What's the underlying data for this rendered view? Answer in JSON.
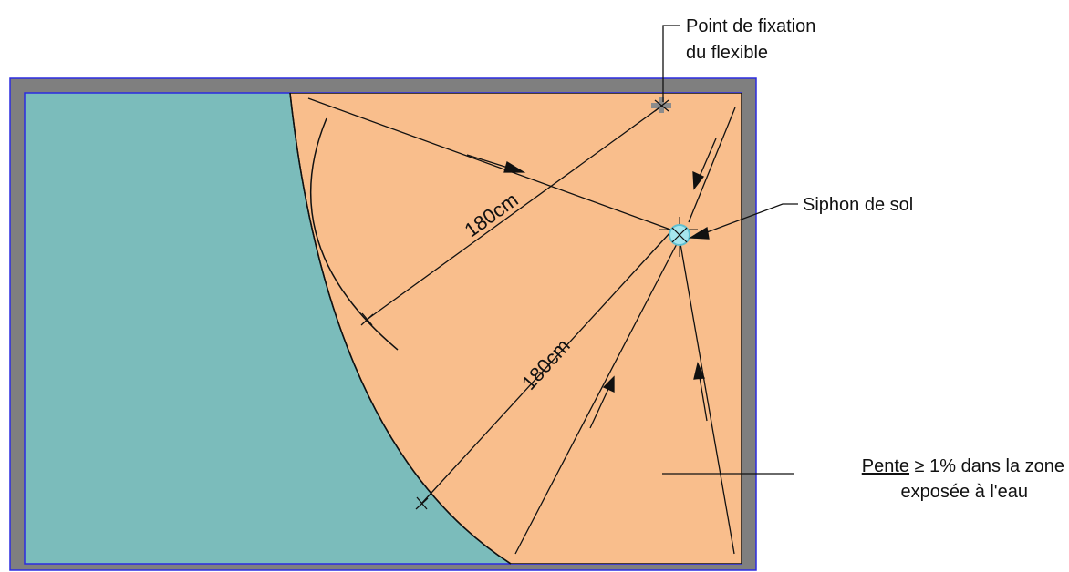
{
  "colors": {
    "wall": "#7f7f7f",
    "wall_outline": "#2b2be0",
    "dry_zone": "#7bbcbb",
    "wet_zone": "#f9be8c",
    "lines": "#111111",
    "drain_fill": "#a6e6ee",
    "drain_ring": "#5fbfd0"
  },
  "labels": {
    "fixation_line1": "Point de fixation",
    "fixation_line2": "du flexible",
    "siphon": "Siphon de sol",
    "slope_underlined": "Pente",
    "slope_rest": " ≥ 1% dans la zone",
    "slope_line2": "exposée à l'eau",
    "dimension_upper": "180cm",
    "dimension_lower": "180cm"
  },
  "icons": {
    "fixation_point": "cross-marker-icon",
    "floor_drain": "floor-drain-icon",
    "slope_arrow": "flow-arrow-icon"
  }
}
